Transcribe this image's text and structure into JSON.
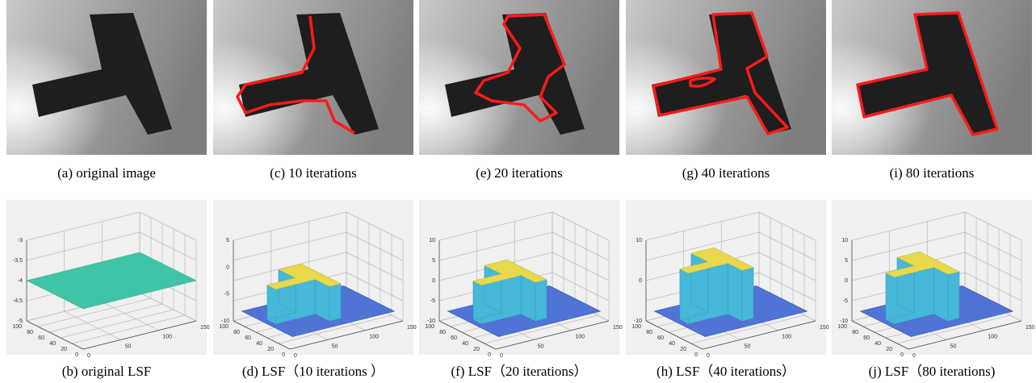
{
  "top_row": [
    {
      "caption": "(a) original image"
    },
    {
      "caption": "(c) 10 iterations"
    },
    {
      "caption": "(e) 20 iterations"
    },
    {
      "caption": "(g) 40 iterations"
    },
    {
      "caption": "(i) 80 iterations"
    }
  ],
  "bottom_row": [
    {
      "caption": "(b) original LSF",
      "z_ticks": [
        "-3",
        "-3.5",
        "-4",
        "-4.5",
        "-5"
      ],
      "y_ticks": [
        "100",
        "80",
        "60",
        "40",
        "20",
        "0"
      ],
      "x_ticks": [
        "0",
        "50",
        "100",
        "150"
      ]
    },
    {
      "caption": "(d) LSF（10 iterations ）",
      "z_ticks": [
        "5",
        "0",
        "-5",
        "-10"
      ],
      "y_ticks": [
        "100",
        "80",
        "60",
        "40",
        "20",
        "0"
      ],
      "x_ticks": [
        "0",
        "50",
        "100",
        "150"
      ]
    },
    {
      "caption": "(f) LSF（20 iterations）",
      "z_ticks": [
        "10",
        "5",
        "0",
        "-5",
        "-10"
      ],
      "y_ticks": [
        "100",
        "80",
        "60",
        "40",
        "20",
        "0"
      ],
      "x_ticks": [
        "0",
        "50",
        "100",
        "150"
      ]
    },
    {
      "caption": "(h) LSF（40 iterations）",
      "z_ticks": [
        "10",
        "0",
        "-10"
      ],
      "y_ticks": [
        "100",
        "80",
        "60",
        "40",
        "20",
        "0"
      ],
      "x_ticks": [
        "0",
        "50",
        "100",
        "150"
      ]
    },
    {
      "caption": "(j) LSF（80 iterations)",
      "z_ticks": [
        "10",
        "5",
        "0",
        "-5",
        "-10"
      ],
      "y_ticks": [
        "100",
        "80",
        "60",
        "40",
        "20",
        "0"
      ],
      "x_ticks": [
        "0",
        "50",
        "100",
        "150"
      ]
    }
  ]
}
